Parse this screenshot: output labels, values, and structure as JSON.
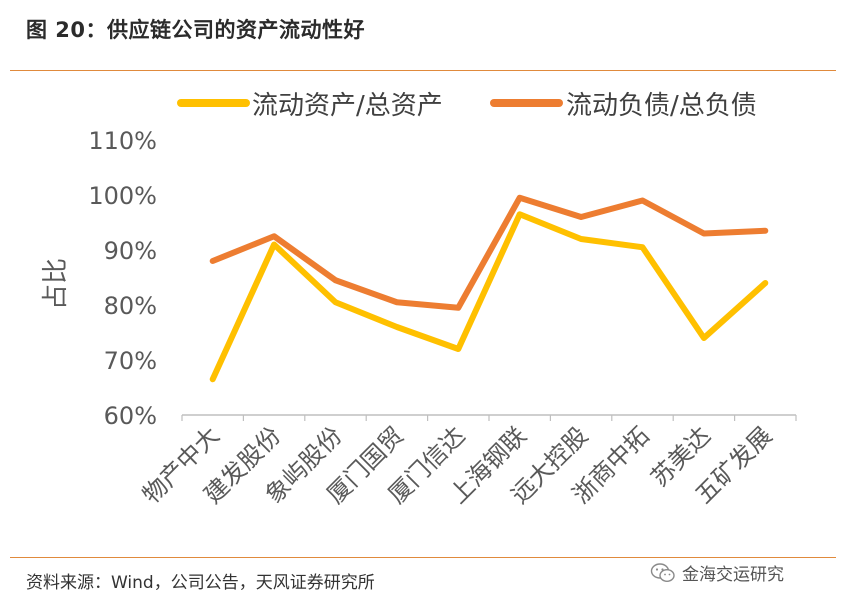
{
  "header": {
    "figure_title": "图 20：供应链公司的资产流动性好"
  },
  "footer": {
    "source": "资料来源：Wind，公司公告，天风证券研究所",
    "watermark": "金海交运研究",
    "watermark_icon": "wechat-icon"
  },
  "colors": {
    "asset_series": "#FFC000",
    "liability_series": "#ED7D31",
    "accent_rule": "#E08A3C",
    "axis": "#BFBFBF"
  },
  "chart_data": {
    "type": "line",
    "title": "",
    "xlabel": "",
    "ylabel": "占比",
    "ylim": [
      60,
      110
    ],
    "yticks": [
      "60%",
      "70%",
      "80%",
      "90%",
      "100%",
      "110%"
    ],
    "grid": false,
    "legend_position": "top",
    "categories": [
      "物产中大",
      "建发股份",
      "象屿股份",
      "厦门国贸",
      "厦门信达",
      "上海钢联",
      "远大控股",
      "浙商中拓",
      "苏美达",
      "五矿发展"
    ],
    "series": [
      {
        "name": "流动资产/总资产",
        "color": "#FFC000",
        "values": [
          66.5,
          91,
          80.5,
          76,
          72,
          96.5,
          92,
          90.5,
          74,
          84
        ]
      },
      {
        "name": "流动负债/总负债",
        "color": "#ED7D31",
        "values": [
          88,
          92.5,
          84.5,
          80.5,
          79.5,
          99.5,
          96,
          99,
          93,
          93.5
        ]
      }
    ]
  }
}
